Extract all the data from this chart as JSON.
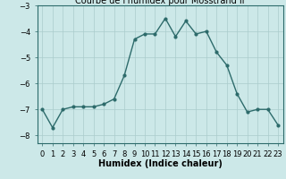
{
  "x": [
    0,
    1,
    2,
    3,
    4,
    5,
    6,
    7,
    8,
    9,
    10,
    11,
    12,
    13,
    14,
    15,
    16,
    17,
    18,
    19,
    20,
    21,
    22,
    23
  ],
  "y": [
    -7.0,
    -7.7,
    -7.0,
    -6.9,
    -6.9,
    -6.9,
    -6.8,
    -6.6,
    -5.7,
    -4.3,
    -4.1,
    -4.1,
    -3.5,
    -4.2,
    -3.6,
    -4.1,
    -4.0,
    -4.8,
    -5.3,
    -6.4,
    -7.1,
    -7.0,
    -7.0,
    -7.6
  ],
  "title": "Courbe de l'humidex pour Mosstrand Ii",
  "xlabel": "Humidex (Indice chaleur)",
  "ylabel": "",
  "line_color": "#2d6b6b",
  "marker": "o",
  "marker_size": 2.0,
  "line_width": 1.0,
  "bg_color": "#cce8e8",
  "grid_color": "#aacccc",
  "ylim": [
    -8.3,
    -3.0
  ],
  "xlim": [
    -0.5,
    23.5
  ],
  "yticks": [
    -8,
    -7,
    -6,
    -5,
    -4,
    -3
  ],
  "xtick_labels": [
    "0",
    "1",
    "2",
    "3",
    "4",
    "5",
    "6",
    "7",
    "8",
    "9",
    "10",
    "11",
    "12",
    "13",
    "14",
    "15",
    "16",
    "17",
    "18",
    "19",
    "20",
    "21",
    "22",
    "23"
  ],
  "title_fontsize": 7,
  "label_fontsize": 7,
  "tick_fontsize": 6
}
